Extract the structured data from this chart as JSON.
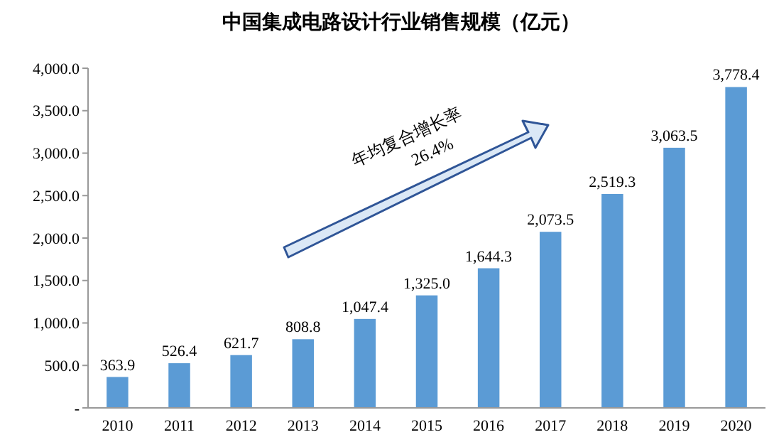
{
  "chart_data": {
    "type": "bar",
    "title": "中国集成电路设计行业销售规模（亿元）",
    "categories": [
      "2010",
      "2011",
      "2012",
      "2013",
      "2014",
      "2015",
      "2016",
      "2017",
      "2018",
      "2019",
      "2020"
    ],
    "values": [
      363.9,
      526.4,
      621.7,
      808.8,
      1047.4,
      1325.0,
      1644.3,
      2073.5,
      2519.3,
      3063.5,
      3778.4
    ],
    "value_labels": [
      "363.9",
      "526.4",
      "621.7",
      "808.8",
      "1,047.4",
      "1,325.0",
      "1,644.3",
      "2,073.5",
      "2,519.3",
      "3,063.5",
      "3,778.4"
    ],
    "color": "#5b9bd5",
    "ylim": [
      0,
      4000
    ],
    "yticks": [
      {
        "value": 0,
        "label": "-"
      },
      {
        "value": 500,
        "label": "500.0"
      },
      {
        "value": 1000,
        "label": "1,000.0"
      },
      {
        "value": 1500,
        "label": "1,500.0"
      },
      {
        "value": 2000,
        "label": "2,000.0"
      },
      {
        "value": 2500,
        "label": "2,500.0"
      },
      {
        "value": 3000,
        "label": "3,000.0"
      },
      {
        "value": 3500,
        "label": "3,500.0"
      },
      {
        "value": 4000,
        "label": "4,000.0"
      }
    ],
    "grid": false,
    "annotations": [
      "年均复合增长率",
      "26.4%"
    ]
  }
}
